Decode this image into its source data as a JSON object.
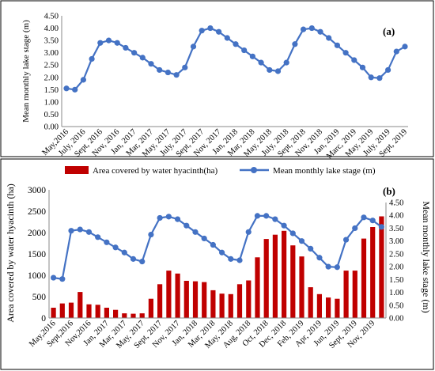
{
  "chart_data": [
    {
      "type": "line",
      "panel_label": "(a)",
      "ylabel": "Mean monthly lake stage (m)",
      "ylim": [
        0,
        4.5
      ],
      "yticks": [
        "0.00",
        "0.50",
        "1.00",
        "1.50",
        "2.00",
        "2.50",
        "3.00",
        "3.50",
        "4.00",
        "4.50"
      ],
      "xtick_labels": [
        "May,2016",
        "July, 2016",
        "Sept, 2016",
        "Nov, 2016",
        "Jan, 2017",
        "Mar, 2017",
        "May, 2017",
        "July, 2017",
        "Sept, 2017",
        "Nov, 2017",
        "Jan, 2018",
        "Mar, 2018",
        "May, 2018",
        "July, 2018",
        "Sept, 2018",
        "Nov, 2018",
        "Jan, 2019",
        "Marc, 2019",
        "May, 2019",
        "July, 2019",
        "Sept, 2019"
      ],
      "series": [
        {
          "color": "#4472C4",
          "values": [
            1.55,
            1.5,
            1.9,
            2.75,
            3.4,
            3.5,
            3.4,
            3.2,
            3.0,
            2.8,
            2.55,
            2.3,
            2.2,
            2.1,
            2.4,
            3.25,
            3.9,
            4.0,
            3.85,
            3.6,
            3.35,
            3.1,
            2.85,
            2.6,
            2.3,
            2.25,
            2.6,
            3.35,
            3.95,
            4.0,
            3.85,
            3.6,
            3.3,
            3.0,
            2.7,
            2.4,
            2.0,
            1.97,
            2.3,
            3.05,
            3.25
          ]
        }
      ]
    },
    {
      "type": "bar+line",
      "panel_label": "(b)",
      "ylabel_left": "Area covered by water hyacinth (ha)",
      "ylabel_right": "Mean monthly lake stage (m)",
      "ylim_left": [
        0,
        3000
      ],
      "ylim_right": [
        0,
        4.5
      ],
      "yticks_left": [
        "0",
        "500",
        "1000",
        "1500",
        "2000",
        "2500",
        "3000"
      ],
      "yticks_right": [
        "0.00",
        "0.50",
        "1.00",
        "1.50",
        "2.00",
        "2.50",
        "3.00",
        "3.50",
        "4.00",
        "4.50"
      ],
      "xtick_labels": [
        "May,2016",
        "Sept,2016",
        "Nov,2016",
        "Jan, 2017",
        "Mar, 2017",
        "May, 2017",
        "Sept, 2017",
        "Nov, 2017",
        "Jan, 2018",
        "Mar, 2018",
        "May, 2018",
        "Aug, 2018",
        "Oct, 2018",
        "Dec, 2018",
        "Feb, 2019",
        "Apr, 2019",
        "Jun, 2019",
        "Sept, 2019",
        "Nov, 2019"
      ],
      "legend": [
        {
          "name": "Area covered by water hyacinth(ha)",
          "color": "#C00000",
          "kind": "bar"
        },
        {
          "name": "Mean monthly lake stage (m)",
          "color": "#4472C4",
          "kind": "line"
        }
      ],
      "bars": [
        240,
        340,
        360,
        610,
        320,
        310,
        240,
        190,
        110,
        100,
        110,
        450,
        790,
        1110,
        1040,
        870,
        860,
        840,
        650,
        570,
        560,
        790,
        880,
        1420,
        1850,
        1950,
        2040,
        1700,
        1440,
        720,
        560,
        480,
        450,
        1110,
        1110,
        1860,
        2130,
        2380
      ],
      "line": [
        1.57,
        1.52,
        3.4,
        3.45,
        3.35,
        3.15,
        2.95,
        2.75,
        2.55,
        2.3,
        2.2,
        3.25,
        3.9,
        3.95,
        3.85,
        3.6,
        3.35,
        3.1,
        2.85,
        2.55,
        2.3,
        2.25,
        3.35,
        3.98,
        3.98,
        3.85,
        3.6,
        3.3,
        3.0,
        2.7,
        2.35,
        2.0,
        1.98,
        3.05,
        3.5,
        3.92,
        3.8,
        3.55
      ]
    }
  ]
}
